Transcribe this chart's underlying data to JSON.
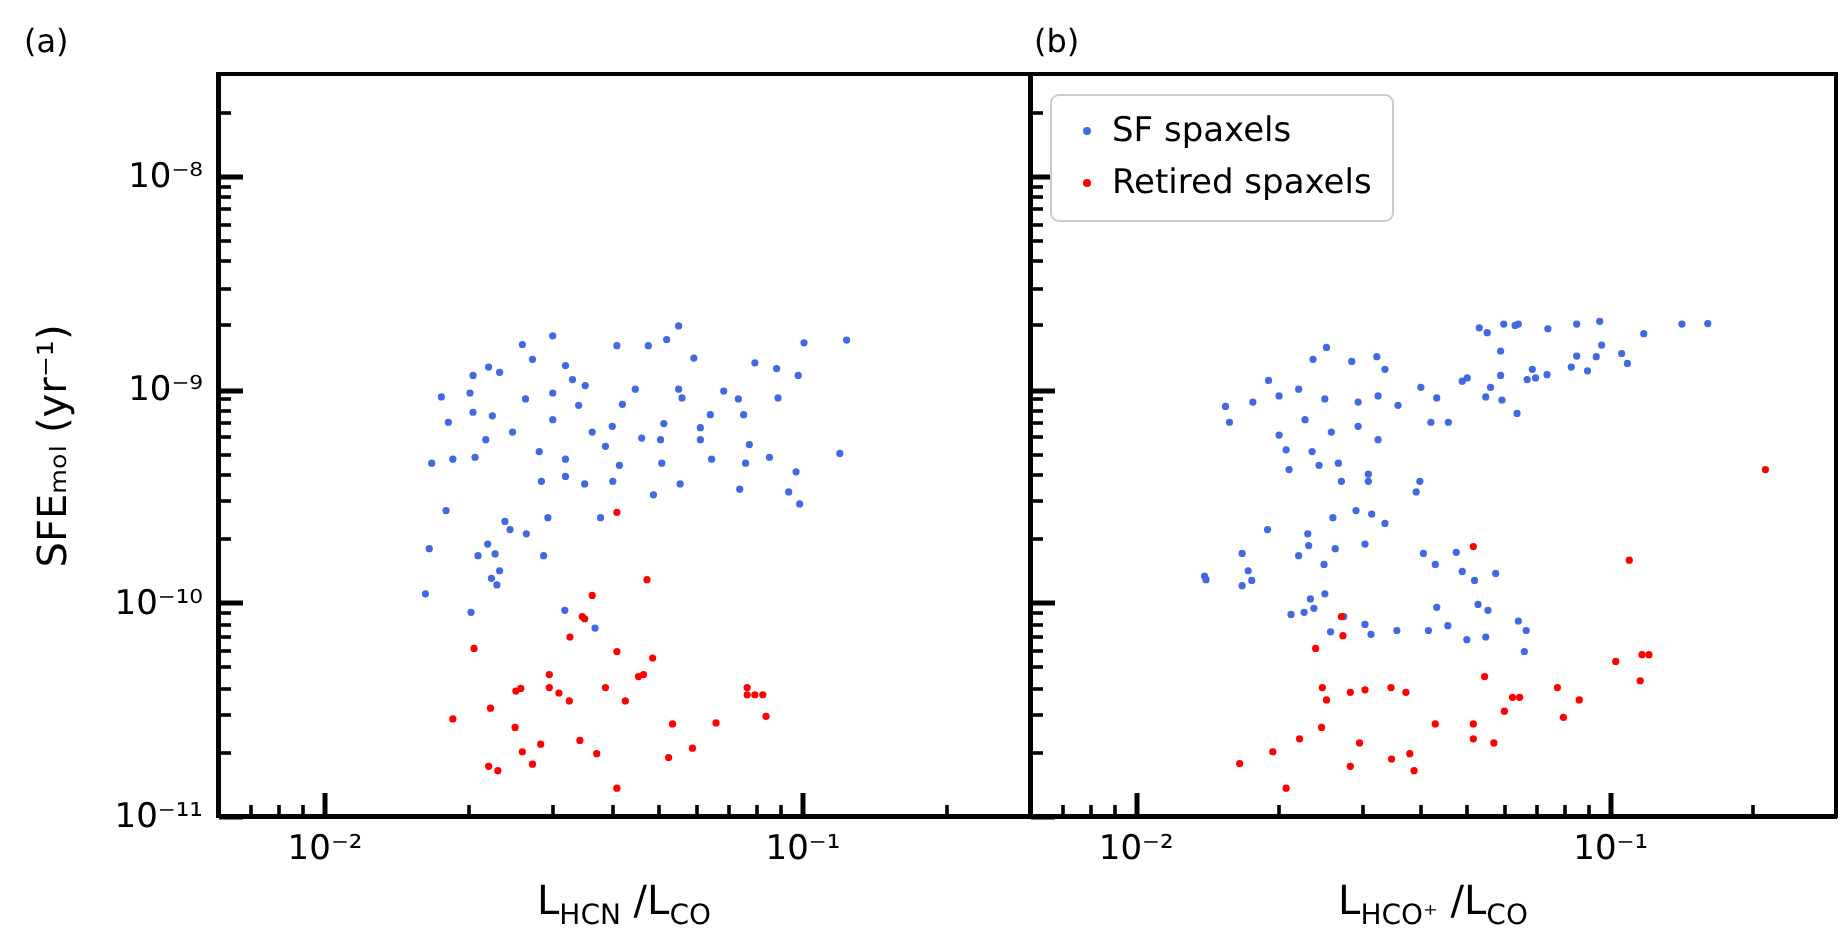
{
  "chart_data": [
    {
      "type": "scatter",
      "title": "(a)",
      "xlabel": "L$_{HCN}$ /L$_{CO}$",
      "ylabel": "SFEₘₒₗ (yr⁻¹)",
      "log": "xy",
      "marker": "circle",
      "xlim": [
        0.006,
        0.3
      ],
      "ylim": [
        1e-11,
        3e-08
      ],
      "xticks": [
        {
          "value": 0.007,
          "label": null
        },
        {
          "value": 0.008,
          "label": null
        },
        {
          "value": 0.009,
          "label": null
        },
        {
          "value": 0.01,
          "label": "10⁻²"
        },
        {
          "value": 0.02,
          "label": null
        },
        {
          "value": 0.03,
          "label": null
        },
        {
          "value": 0.04,
          "label": null
        },
        {
          "value": 0.05,
          "label": null
        },
        {
          "value": 0.06,
          "label": null
        },
        {
          "value": 0.07,
          "label": null
        },
        {
          "value": 0.08,
          "label": null
        },
        {
          "value": 0.09,
          "label": null
        },
        {
          "value": 0.1,
          "label": "10⁻¹"
        },
        {
          "value": 0.2,
          "label": null
        }
      ],
      "yticks": [
        {
          "value": 1e-11,
          "label": "10⁻¹¹"
        },
        {
          "value": 2e-11,
          "label": null
        },
        {
          "value": 3e-11,
          "label": null
        },
        {
          "value": 4e-11,
          "label": null
        },
        {
          "value": 5e-11,
          "label": null
        },
        {
          "value": 6e-11,
          "label": null
        },
        {
          "value": 7e-11,
          "label": null
        },
        {
          "value": 8e-11,
          "label": null
        },
        {
          "value": 9e-11,
          "label": null
        },
        {
          "value": 1e-10,
          "label": "10⁻¹⁰"
        },
        {
          "value": 2e-10,
          "label": null
        },
        {
          "value": 3e-10,
          "label": null
        },
        {
          "value": 4e-10,
          "label": null
        },
        {
          "value": 5e-10,
          "label": null
        },
        {
          "value": 6e-10,
          "label": null
        },
        {
          "value": 7e-10,
          "label": null
        },
        {
          "value": 8e-10,
          "label": null
        },
        {
          "value": 9e-10,
          "label": null
        },
        {
          "value": 1e-09,
          "label": "10⁻⁹"
        },
        {
          "value": 2e-09,
          "label": null
        },
        {
          "value": 3e-09,
          "label": null
        },
        {
          "value": 4e-09,
          "label": null
        },
        {
          "value": 5e-09,
          "label": null
        },
        {
          "value": 6e-09,
          "label": null
        },
        {
          "value": 7e-09,
          "label": null
        },
        {
          "value": 8e-09,
          "label": null
        },
        {
          "value": 9e-09,
          "label": null
        },
        {
          "value": 1e-08,
          "label": "10⁻⁸"
        },
        {
          "value": 2e-08,
          "label": null
        }
      ],
      "series": [
        {
          "color": "#4169e1",
          "x": [
            0.0301,
            0.0552,
            0.101,
            0.026,
            0.0477,
            0.0521,
            0.041,
            0.0594,
            0.0797,
            0.0885,
            0.0982,
            0.0221,
            0.0205,
            0.0176,
            0.0182,
            0.0168,
            0.0186,
            0.0207,
            0.0202,
            0.0686,
            0.0736,
            0.0891,
            0.0552,
            0.0448,
            0.0561,
            0.0421,
            0.0514,
            0.0643,
            0.0755,
            0.0613,
            0.0613,
            0.0776,
            0.0462,
            0.0506,
            0.0647,
            0.0855,
            0.0762,
            0.0509,
            0.0972,
            0.0415,
            0.0556,
            0.0489,
            0.0741,
            0.0938,
            0.0989,
            0.0402,
            0.0351,
            0.0285,
            0.032,
            0.018,
            0.0239,
            0.0245,
            0.0265,
            0.0294,
            0.0379,
            0.0301,
            0.0264,
            0.0233,
            0.032,
            0.0341,
            0.0364,
            0.0248,
            0.0282,
            0.032,
            0.0388,
            0.0225,
            0.0401,
            0.0273,
            0.0352,
            0.0205,
            0.0218,
            0.0301,
            0.0331,
            0.0166,
            0.021,
            0.022,
            0.0228,
            0.0233,
            0.0224,
            0.023,
            0.0288,
            0.0163,
            0.0203,
            0.0319,
            0.0369,
            0.124,
            0.12
          ],
          "values": [
            1.78e-09,
            1.98e-09,
            1.65e-09,
            1.62e-09,
            1.6e-09,
            1.71e-09,
            1.6e-09,
            1.4e-09,
            1.33e-09,
            1.25e-09,
            1.16e-09,
            1.27e-09,
            1.16e-09,
            9.2e-10,
            7e-10,
            4.5e-10,
            4.7e-10,
            4.8e-10,
            9.6e-10,
            9.8e-10,
            9e-10,
            9.1e-10,
            1e-09,
            1e-09,
            9.1e-10,
            8.5e-10,
            6.9e-10,
            7.6e-10,
            7.6e-10,
            6.6e-10,
            5.8e-10,
            5.5e-10,
            5.9e-10,
            5.8e-10,
            4.7e-10,
            4.8e-10,
            4.5e-10,
            4.5e-10,
            4.1e-10,
            4.4e-10,
            3.6e-10,
            3.2e-10,
            3.4e-10,
            3.3e-10,
            2.9e-10,
            3.7e-10,
            3.6e-10,
            3.7e-10,
            3.9e-10,
            2.7e-10,
            2.4e-10,
            2.2e-10,
            2.1e-10,
            2.5e-10,
            2.5e-10,
            9.6e-10,
            9e-10,
            1.2e-09,
            1.29e-09,
            8.4e-10,
            6.3e-10,
            6.3e-10,
            5.1e-10,
            4.7e-10,
            5.4e-10,
            7.5e-10,
            6.7e-10,
            1.38e-09,
            1.04e-09,
            7.8e-10,
            5.8e-10,
            7.2e-10,
            1.11e-09,
            1.79e-10,
            1.66e-10,
            1.88e-10,
            1.69e-10,
            1.41e-10,
            1.3e-10,
            1.21e-10,
            1.66e-10,
            1.1e-10,
            9e-11,
            9.2e-11,
            7.6e-11,
            1.7e-09,
            5e-10
          ]
        },
        {
          "color": "#ff0000",
          "x": [
            0.041,
            0.0474,
            0.0364,
            0.0347,
            0.0351,
            0.0327,
            0.0206,
            0.041,
            0.0487,
            0.0296,
            0.0455,
            0.0466,
            0.0296,
            0.0388,
            0.0252,
            0.0258,
            0.031,
            0.0768,
            0.0768,
            0.0797,
            0.0828,
            0.0326,
            0.0427,
            0.0186,
            0.0223,
            0.0841,
            0.0251,
            0.0536,
            0.0661,
            0.0343,
            0.0284,
            0.026,
            0.0372,
            0.059,
            0.0526,
            0.0273,
            0.0221,
            0.0231,
            0.041
          ],
          "values": [
            2.65e-10,
            1.28e-10,
            1.08e-10,
            8.6e-11,
            8.4e-11,
            6.9e-11,
            6.1e-11,
            5.9e-11,
            5.5e-11,
            4.6e-11,
            4.5e-11,
            4.6e-11,
            4e-11,
            4e-11,
            3.85e-11,
            3.96e-11,
            3.77e-11,
            4e-11,
            3.7e-11,
            3.7e-11,
            3.7e-11,
            3.46e-11,
            3.46e-11,
            2.85e-11,
            3.2e-11,
            2.93e-11,
            2.6e-11,
            2.7e-11,
            2.73e-11,
            2.26e-11,
            2.17e-11,
            2e-11,
            1.96e-11,
            2.08e-11,
            1.88e-11,
            1.75e-11,
            1.71e-11,
            1.63e-11,
            1.35e-11
          ]
        }
      ]
    },
    {
      "type": "scatter",
      "title": "(b)",
      "xlabel": "L$_{HCO⁺}$ /L$_{CO}$",
      "log": "xy",
      "marker": "circle",
      "legend": "top left",
      "tick_labels": "x",
      "xlim": [
        0.006,
        0.3
      ],
      "ylim": [
        1e-11,
        3e-08
      ],
      "xticks": [
        {
          "value": 0.007,
          "label": null
        },
        {
          "value": 0.008,
          "label": null
        },
        {
          "value": 0.009,
          "label": null
        },
        {
          "value": 0.01,
          "label": "10⁻²"
        },
        {
          "value": 0.02,
          "label": null
        },
        {
          "value": 0.03,
          "label": null
        },
        {
          "value": 0.04,
          "label": null
        },
        {
          "value": 0.05,
          "label": null
        },
        {
          "value": 0.06,
          "label": null
        },
        {
          "value": 0.07,
          "label": null
        },
        {
          "value": 0.08,
          "label": null
        },
        {
          "value": 0.09,
          "label": null
        },
        {
          "value": 0.1,
          "label": "10⁻¹"
        },
        {
          "value": 0.2,
          "label": null
        }
      ],
      "yticks": [
        {
          "value": 1e-11,
          "label": null
        },
        {
          "value": 2e-11,
          "label": null
        },
        {
          "value": 3e-11,
          "label": null
        },
        {
          "value": 4e-11,
          "label": null
        },
        {
          "value": 5e-11,
          "label": null
        },
        {
          "value": 6e-11,
          "label": null
        },
        {
          "value": 7e-11,
          "label": null
        },
        {
          "value": 8e-11,
          "label": null
        },
        {
          "value": 9e-11,
          "label": null
        },
        {
          "value": 1e-10,
          "label": null
        },
        {
          "value": 2e-10,
          "label": null
        },
        {
          "value": 3e-10,
          "label": null
        },
        {
          "value": 4e-10,
          "label": null
        },
        {
          "value": 5e-10,
          "label": null
        },
        {
          "value": 6e-10,
          "label": null
        },
        {
          "value": 7e-10,
          "label": null
        },
        {
          "value": 8e-10,
          "label": null
        },
        {
          "value": 9e-10,
          "label": null
        },
        {
          "value": 1e-09,
          "label": null
        },
        {
          "value": 2e-09,
          "label": null
        },
        {
          "value": 3e-09,
          "label": null
        },
        {
          "value": 4e-09,
          "label": null
        },
        {
          "value": 5e-09,
          "label": null
        },
        {
          "value": 6e-09,
          "label": null
        },
        {
          "value": 7e-09,
          "label": null
        },
        {
          "value": 8e-09,
          "label": null
        },
        {
          "value": 9e-09,
          "label": null
        },
        {
          "value": 1e-08,
          "label": null
        },
        {
          "value": 2e-08,
          "label": null
        }
      ],
      "series": [
        {
          "name": "SF spaxels",
          "color": "#4169e1",
          "x": [
            0.0531,
            0.0552,
            0.0598,
            0.0632,
            0.0642,
            0.0741,
            0.0852,
            0.0953,
            0.118,
            0.142,
            0.161,
            0.0589,
            0.0962,
            0.106,
            0.0852,
            0.0937,
            0.109,
            0.083,
            0.0898,
            0.0687,
            0.0738,
            0.0589,
            0.067,
            0.0698,
            0.0501,
            0.0489,
            0.0561,
            0.0548,
            0.0593,
            0.0638,
            0.0457,
            0.042,
            0.04,
            0.0432,
            0.0253,
            0.0237,
            0.0286,
            0.0323,
            0.0336,
            0.0191,
            0.0155,
            0.0158,
            0.0177,
            0.0201,
            0.0221,
            0.0251,
            0.0295,
            0.0325,
            0.0358,
            0.0228,
            0.0259,
            0.0295,
            0.0325,
            0.0201,
            0.0208,
            0.0236,
            0.0268,
            0.0211,
            0.0244,
            0.0272,
            0.031,
            0.031,
            0.0398,
            0.0391,
            0.0261,
            0.0292,
            0.0315,
            0.019,
            0.0336,
            0.0231,
            0.0232,
            0.0264,
            0.0305,
            0.0168,
            0.0221,
            0.025,
            0.0405,
            0.0429,
            0.0475,
            0.0489,
            0.0519,
            0.0575,
            0.014,
            0.0141,
            0.0173,
            0.0176,
            0.0168,
            0.0234,
            0.0251,
            0.0213,
            0.0227,
            0.0238,
            0.0275,
            0.0305,
            0.0314,
            0.0258,
            0.0356,
            0.0415,
            0.0432,
            0.0456,
            0.05,
            0.0548,
            0.0528,
            0.0554,
            0.0642,
            0.0667,
            0.0661
          ],
          "values": [
            1.94e-09,
            1.84e-09,
            2.02e-09,
            1.99e-09,
            2.02e-09,
            1.92e-09,
            2.02e-09,
            2.08e-09,
            1.82e-09,
            2.02e-09,
            2.03e-09,
            1.51e-09,
            1.61e-09,
            1.47e-09,
            1.43e-09,
            1.42e-09,
            1.32e-09,
            1.27e-09,
            1.22e-09,
            1.24e-09,
            1.17e-09,
            1.16e-09,
            1.11e-09,
            1.13e-09,
            1.13e-09,
            1.09e-09,
            1.02e-09,
            9.2e-10,
            8.9e-10,
            7.7e-10,
            7e-10,
            7e-10,
            1.02e-09,
            9.1e-10,
            1.57e-09,
            1.38e-09,
            1.35e-09,
            1.42e-09,
            1.24e-09,
            1.1e-09,
            8.3e-10,
            7e-10,
            8.7e-10,
            9.3e-10,
            1e-09,
            9e-10,
            8.7e-10,
            9.3e-10,
            8.4e-10,
            7.2e-10,
            6.3e-10,
            6.7e-10,
            5.8e-10,
            6.1e-10,
            5.2e-10,
            5.1e-10,
            4.5e-10,
            4.2e-10,
            4.4e-10,
            3.7e-10,
            4e-10,
            3.7e-10,
            3.7e-10,
            3.3e-10,
            2.5e-10,
            2.7e-10,
            2.6e-10,
            2.2e-10,
            2.35e-10,
            2.1e-10,
            1.85e-10,
            1.79e-10,
            1.88e-10,
            1.7e-10,
            1.66e-10,
            1.51e-10,
            1.7e-10,
            1.51e-10,
            1.72e-10,
            1.4e-10,
            1.27e-10,
            1.37e-10,
            1.33e-10,
            1.28e-10,
            1.41e-10,
            1.27e-10,
            1.2e-10,
            1.04e-10,
            1.1e-10,
            8.8e-11,
            9e-11,
            9.4e-11,
            8.6e-11,
            7.9e-11,
            7.1e-11,
            7.3e-11,
            7.4e-11,
            7.4e-11,
            9.5e-11,
            7.8e-11,
            6.7e-11,
            6.9e-11,
            9.8e-11,
            9.2e-11,
            8.2e-11,
            7.4e-11,
            5.9e-11
          ]
        },
        {
          "name": "Retired spaxels",
          "color": "#ff0000",
          "x": [
            0.213,
            0.0516,
            0.11,
            0.0272,
            0.0274,
            0.024,
            0.103,
            0.117,
            0.121,
            0.0545,
            0.116,
            0.0248,
            0.0253,
            0.0284,
            0.0305,
            0.0346,
            0.0372,
            0.0776,
            0.0863,
            0.0646,
            0.0624,
            0.06,
            0.0799,
            0.0429,
            0.0516,
            0.0247,
            0.0222,
            0.0516,
            0.057,
            0.0297,
            0.0195,
            0.0379,
            0.0166,
            0.0284,
            0.0347,
            0.0387,
            0.0208
          ],
          "values": [
            4.2e-10,
            1.83e-10,
            1.58e-10,
            8.6e-11,
            7e-11,
            6.1e-11,
            5.3e-11,
            5.7e-11,
            5.7e-11,
            4.5e-11,
            4.3e-11,
            4e-11,
            3.5e-11,
            3.8e-11,
            3.9e-11,
            4e-11,
            3.8e-11,
            4e-11,
            3.5e-11,
            3.6e-11,
            3.6e-11,
            3.1e-11,
            2.9e-11,
            2.7e-11,
            2.7e-11,
            2.6e-11,
            2.3e-11,
            2.3e-11,
            2.2e-11,
            2.2e-11,
            2e-11,
            1.96e-11,
            1.76e-11,
            1.71e-11,
            1.85e-11,
            1.63e-11,
            1.35e-11
          ]
        }
      ]
    }
  ]
}
